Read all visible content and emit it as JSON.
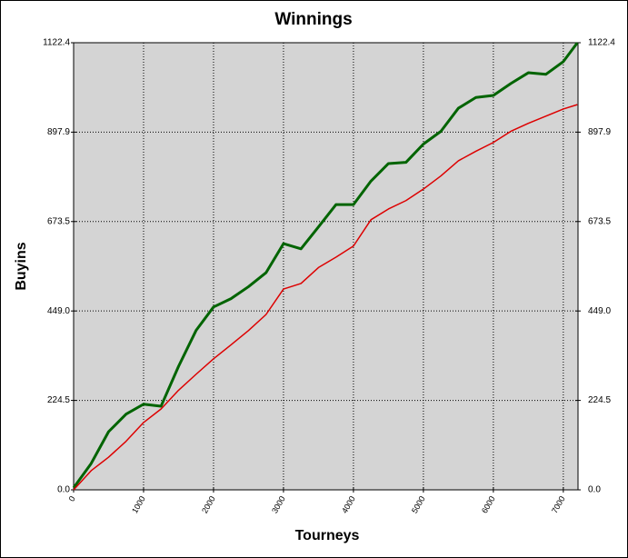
{
  "chart_data": {
    "type": "line",
    "title": "Winnings",
    "x_label": "Tourneys",
    "y_label": "Buyins",
    "x": [
      0,
      250,
      500,
      750,
      1000,
      1250,
      1500,
      1750,
      2000,
      2250,
      2500,
      2750,
      3000,
      3250,
      3500,
      3750,
      4000,
      4250,
      4500,
      4750,
      5000,
      5250,
      5500,
      5750,
      6000,
      6250,
      6500,
      6750,
      7000,
      7200
    ],
    "series": [
      {
        "color": "#006400",
        "values": [
          5,
          66,
          146,
          190,
          215,
          210,
          310,
          400,
          459,
          480,
          510,
          545,
          618,
          605,
          660,
          716,
          716,
          775,
          819,
          822,
          868,
          900,
          958,
          985,
          990,
          1020,
          1047,
          1043,
          1075,
          1122
        ]
      },
      {
        "color": "#dd0000",
        "values": [
          0,
          48,
          82,
          122,
          169,
          203,
          250,
          290,
          329,
          364,
          400,
          440,
          504,
          518,
          558,
          584,
          612,
          678,
          705,
          726,
          755,
          788,
          826,
          850,
          872,
          900,
          920,
          938,
          956,
          967
        ]
      }
    ],
    "xlim": [
      0,
      7210
    ],
    "xticks": [
      0,
      1000,
      2000,
      3000,
      4000,
      5000,
      6000,
      7000
    ],
    "ylim": [
      0,
      1122.4
    ],
    "yticks": [
      {
        "value": 0,
        "label": "0.0"
      },
      224.5,
      {
        "value": 449,
        "label": "449.0"
      },
      673.5,
      897.9,
      1122.4
    ],
    "grid": true
  }
}
